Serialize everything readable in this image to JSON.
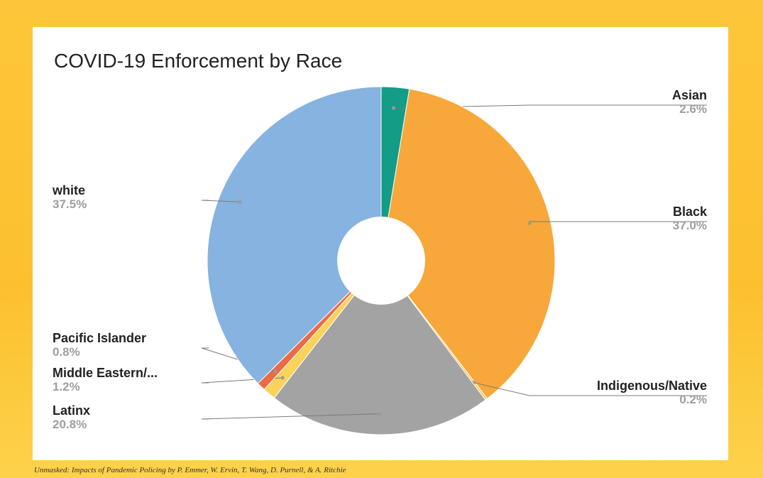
{
  "chart_data": {
    "type": "pie",
    "title": "COVID-19 Enforcement by Race",
    "donut": true,
    "slices": [
      {
        "label": "Asian",
        "pct_label": "2.6%",
        "value": 2.6,
        "color": "#139c88"
      },
      {
        "label": "Black",
        "pct_label": "37.0%",
        "value": 37.0,
        "color": "#f8a73a"
      },
      {
        "label": "Indigenous/Native",
        "pct_label": "0.2%",
        "value": 0.2,
        "color": "#f0c75a"
      },
      {
        "label": "Latinx",
        "pct_label": "20.8%",
        "value": 20.8,
        "color": "#a3a3a3"
      },
      {
        "label": "Middle Eastern/...",
        "pct_label": "1.2%",
        "value": 1.2,
        "color": "#fbd25a"
      },
      {
        "label": "Pacific Islander",
        "pct_label": "0.8%",
        "value": 0.8,
        "color": "#ec6b45"
      },
      {
        "label": "white",
        "pct_label": "37.5%",
        "value": 37.5,
        "color": "#86b3e0"
      }
    ]
  },
  "caption": "Unmasked: Impacts of Pandemic Policing by P. Emmer, W. Ervin, T. Wang, D. Purnell, & A. Ritchie"
}
